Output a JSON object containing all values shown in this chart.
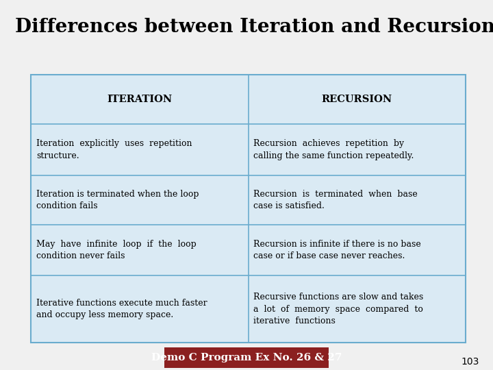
{
  "title": "Differences between Iteration and Recursion",
  "title_bg": "#ffff99",
  "title_fontsize": 20,
  "title_color": "#000000",
  "bg_color": "#f0f0f0",
  "table_bg": "#daeaf4",
  "header_row": [
    "ITERATION",
    "RECURSION"
  ],
  "rows": [
    [
      "Iteration  explicitly  uses  repetition\nstructure.",
      "Recursion  achieves  repetition  by\ncalling the same function repeatedly."
    ],
    [
      "Iteration is terminated when the loop\ncondition fails",
      "Recursion  is  terminated  when  base\ncase is satisfied."
    ],
    [
      "May  have  infinite  loop  if  the  loop\ncondition never fails",
      "Recursion is infinite if there is no base\ncase or if base case never reaches."
    ],
    [
      "Iterative functions execute much faster\nand occupy less memory space.",
      "Recursive functions are slow and takes\na  lot  of  memory  space  compared  to\niterative  functions"
    ]
  ],
  "footer_text": "Demo C Program Ex No. 26 & 27",
  "footer_bg": "#8b2020",
  "footer_text_color": "#ffffff",
  "page_number": "103",
  "cell_border_color": "#6aacce",
  "text_fontsize": 9,
  "header_fontsize": 10.5
}
